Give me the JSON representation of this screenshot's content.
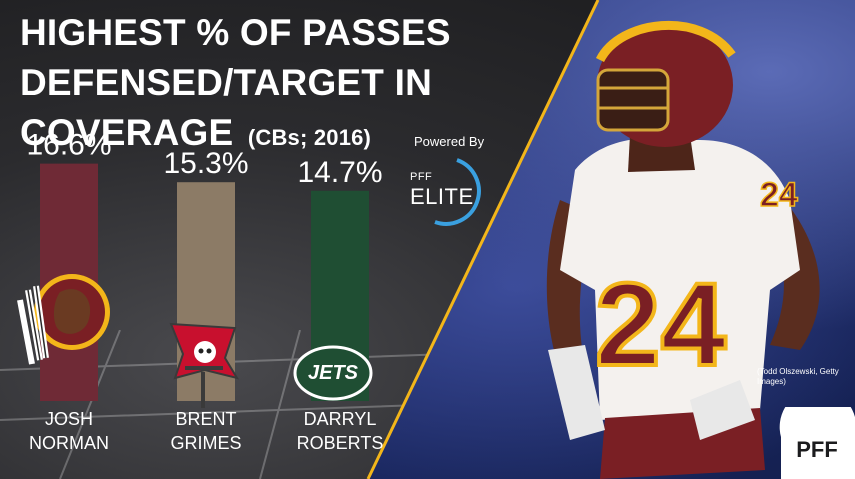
{
  "title": {
    "line1": "HIGHEST % OF PASSES",
    "line2": "DEFENSED/TARGET IN",
    "line3": "COVERAGE",
    "subtitle": "(CBs; 2016)"
  },
  "badge": {
    "powered_by": "Powered By",
    "pff": "PFF",
    "elite": "ELITE"
  },
  "photo_credit": "(Todd Olszewski, Getty Images)",
  "corner_logo": "PFF",
  "colors": {
    "redskins_bar": "#6f2a36",
    "buccaneers_bar": "#8c7b66",
    "jets_bar": "#1f4e33",
    "accent_gold": "#f3b61a",
    "elite_ring": "#3aa0e0"
  },
  "team_logos": [
    "washington-redskins",
    "tampa-bay-buccaneers",
    "new-york-jets"
  ],
  "jets_logo_text": "JETS",
  "chart_data": {
    "type": "bar",
    "title": "HIGHEST % OF PASSES DEFENSED/TARGET IN COVERAGE",
    "subtitle": "(CBs; 2016)",
    "categories": [
      "JOSH NORMAN",
      "BRENT GRIMES",
      "DARRYL ROBERTS"
    ],
    "category_lines": [
      [
        "JOSH",
        "NORMAN"
      ],
      [
        "BRENT",
        "GRIMES"
      ],
      [
        "DARRYL",
        "ROBERTS"
      ]
    ],
    "values": [
      16.6,
      15.3,
      14.7
    ],
    "value_labels": [
      "16.6%",
      "15.3%",
      "14.7%"
    ],
    "ylim": [
      0,
      30
    ],
    "xlabel": "",
    "ylabel": ""
  }
}
